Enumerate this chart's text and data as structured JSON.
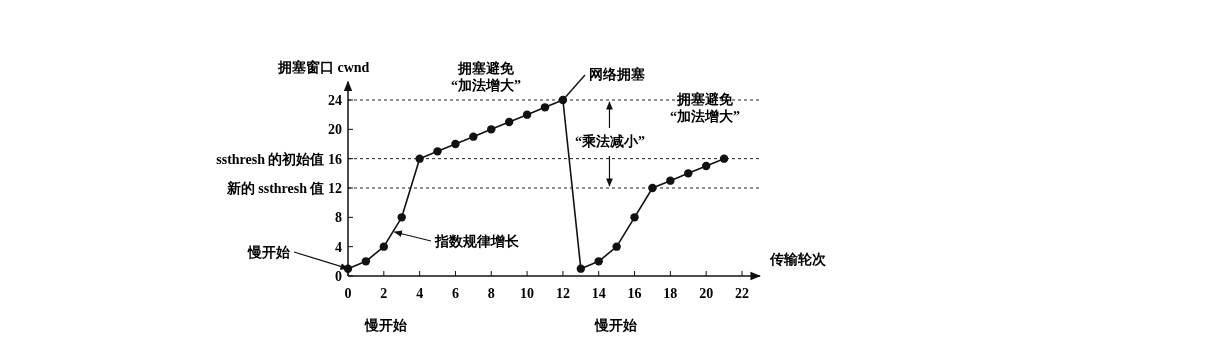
{
  "chart_data": {
    "type": "line",
    "ylabel": "拥塞窗口 cwnd",
    "xlabel": "传输轮次",
    "x": [
      0,
      1,
      2,
      3,
      4,
      5,
      6,
      7,
      8,
      9,
      10,
      11,
      12,
      13,
      14,
      15,
      16,
      17,
      18,
      19,
      20,
      21
    ],
    "series": [
      {
        "color": "#111111",
        "values": [
          1,
          2,
          4,
          8,
          16,
          17,
          18,
          19,
          20,
          21,
          22,
          23,
          24,
          1,
          2,
          4,
          8,
          12,
          13,
          14,
          15,
          16
        ]
      }
    ],
    "xlim": [
      0,
      23
    ],
    "ylim": [
      0,
      26.5
    ],
    "xticks": [
      0,
      2,
      4,
      6,
      8,
      10,
      12,
      14,
      16,
      18,
      20,
      22
    ],
    "yticks": [
      0,
      4,
      8,
      {
        "value": 12,
        "label": "新的 ssthresh 值 12"
      },
      {
        "value": 16,
        "label": "ssthresh 的初始值 16"
      },
      20,
      24
    ],
    "ref_lines": [
      {
        "axis": "y",
        "value": 24,
        "line_style": "dashed"
      },
      {
        "axis": "y",
        "value": 16,
        "line_style": "dashed"
      },
      {
        "axis": "y",
        "value": 12,
        "line_style": "dashed"
      }
    ],
    "marker": "circle",
    "line_style": "solid",
    "grid": false,
    "annotations": [
      {
        "text": "慢开始",
        "x": 0,
        "y": 1
      },
      {
        "text": "指数规律增长",
        "x": 2.6,
        "y": 6
      },
      {
        "text": "网络拥塞",
        "x": 12,
        "y": 24
      },
      "拥塞避免\n“加法增大”",
      "拥塞避免\n“加法增大”",
      {
        "text": "“乘法减小”",
        "x": 14.6,
        "y": 24
      },
      "慢开始",
      "慢开始"
    ]
  }
}
